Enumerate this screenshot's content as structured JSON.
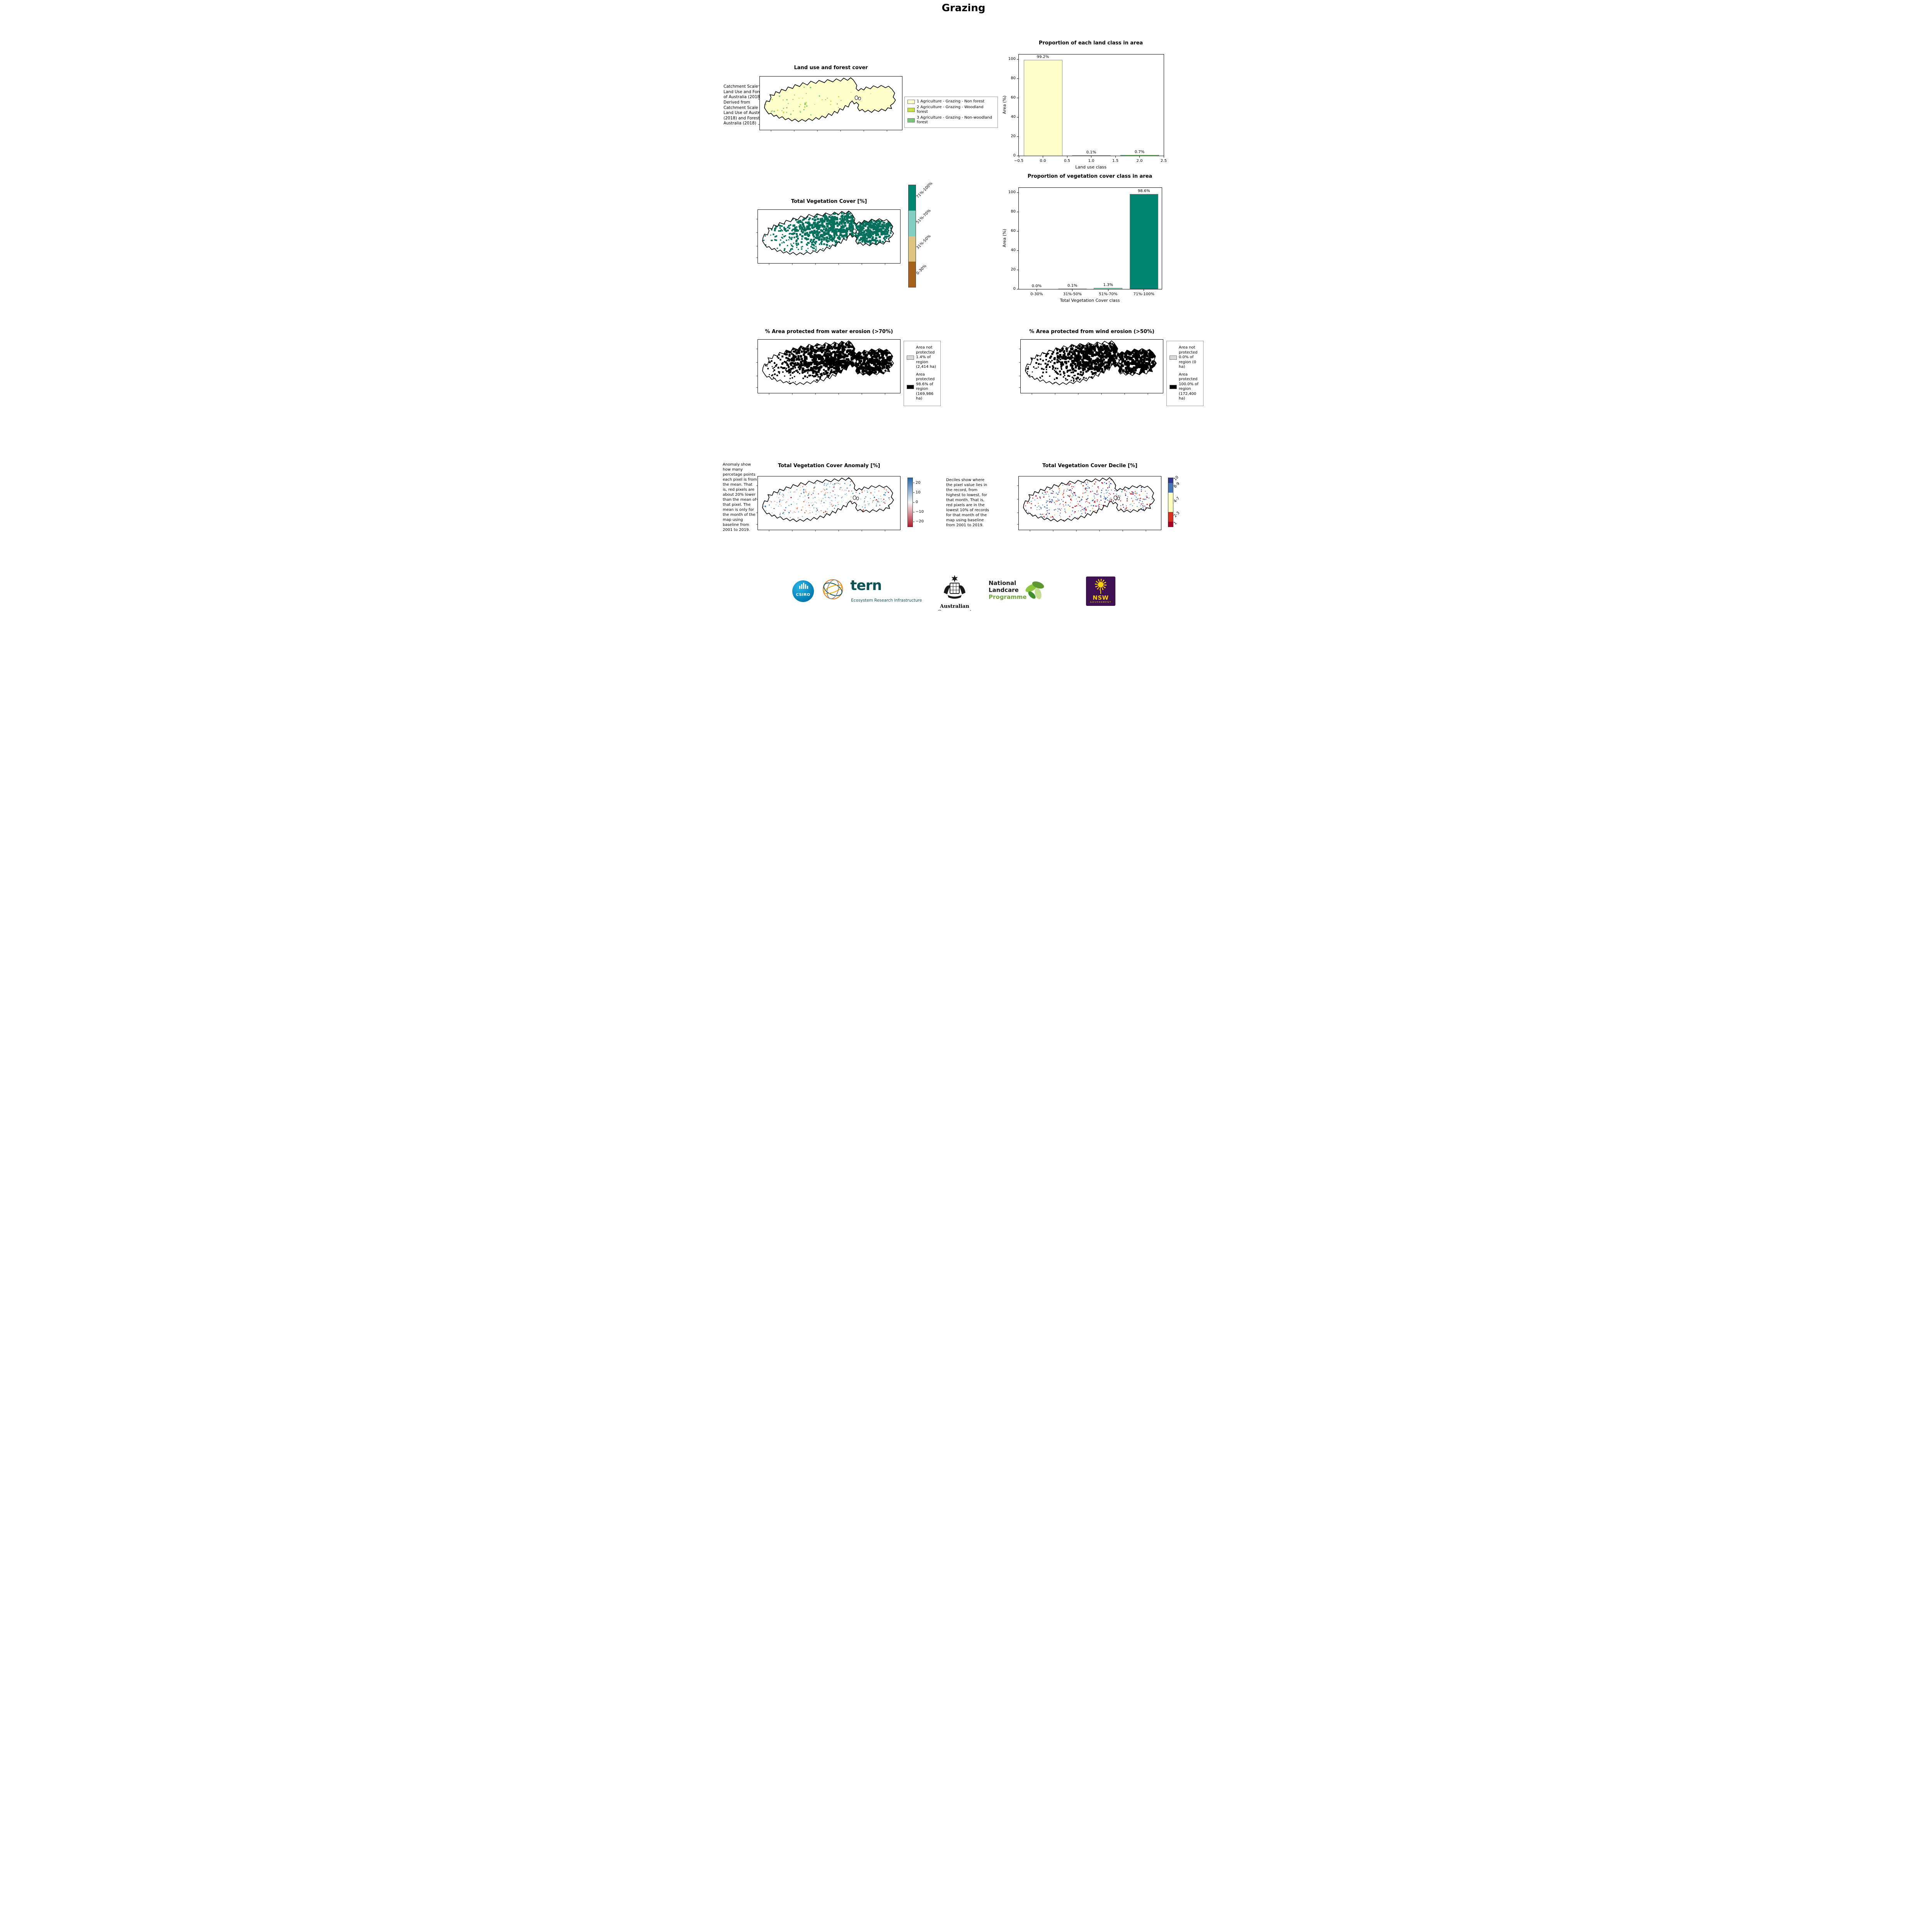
{
  "page": {
    "title": "Grazing"
  },
  "landuse": {
    "title": "Land use and forest cover",
    "note": "Catchment Scale Land Use and Forests of Australia (2018) Derived from Catchment Scale Land Use of Australia (2018) and Forests of Australia (2018)",
    "legend": [
      {
        "label": "1 Agriculture - Grazing - Non forest",
        "color": "#ffffcc"
      },
      {
        "label": "2 Agriculture - Grazing - Woodland forest",
        "color": "#c5e04a"
      },
      {
        "label": "3 Agriculture - Grazing - Non-woodland forest",
        "color": "#78c679"
      }
    ]
  },
  "veg_cover": {
    "title": "Total Vegetation Cover [%]",
    "map_color": "#06705c",
    "colorbar": [
      {
        "label": "71%-100%",
        "color": "#018571"
      },
      {
        "label": "51%-70%",
        "color": "#80cdc1"
      },
      {
        "label": "31%-50%",
        "color": "#dfc27d"
      },
      {
        "label": "0-30%",
        "color": "#a6611a"
      }
    ]
  },
  "water_erosion": {
    "title": "% Area protected from water erosion (>70%)",
    "legend": [
      {
        "label": "Area not protected 1.4% of region (2,414 ha)",
        "color": "#d9d9d9"
      },
      {
        "label": "Area protected 98.6% of region (169,986 ha)",
        "color": "#000000"
      }
    ]
  },
  "wind_erosion": {
    "title": "% Area protected from wind erosion (>50%)",
    "legend": [
      {
        "label": "Area not protected 0.0% of region (0 ha)",
        "color": "#d9d9d9"
      },
      {
        "label": "Area protected 100.0% of region (172,400 ha)",
        "color": "#000000"
      }
    ]
  },
  "anomaly": {
    "title": "Total Vegetation Cover Anomaly [%]",
    "note": "Anomaly show how many percetage points each pixel is from the mean. That is, red pixels are about 20% lower than the mean of that pixel. The mean is only for the month of the map using baseline from 2001 to 2019.",
    "colorbar_ticks": [
      "20",
      "10",
      "0",
      "−10",
      "−20"
    ],
    "colorbar_colors": {
      "top": "#2166ac",
      "mid": "#f7f7f7",
      "bottom": "#b2182b"
    }
  },
  "decile": {
    "title": "Total Vegetation Cover Decile [%]",
    "note": "Deciles show where the pixel value lies in the record, from highest to lowest, for that month. That is, red pixels are in the lowest 10% of records for that month of the map using baseline from 2001 to 2019.",
    "colorbar": [
      {
        "label": "10",
        "color": "#313695",
        "frac": 0.1
      },
      {
        "label": "8-9",
        "color": "#4575b4",
        "frac": 0.2
      },
      {
        "label": "4-7",
        "color": "#ffffbf",
        "frac": 0.4
      },
      {
        "label": "2-3",
        "color": "#d7301f",
        "frac": 0.2
      },
      {
        "label": "1",
        "color": "#a50026",
        "frac": 0.1
      }
    ]
  },
  "chart_data": [
    {
      "type": "bar",
      "title": "Proportion of each land class in area",
      "xlabel": "Land use class",
      "ylabel": "Area (%)",
      "x": [
        0,
        1,
        2
      ],
      "values": [
        99.2,
        0.1,
        0.7
      ],
      "bar_labels": [
        "99.2%",
        "0.1%",
        "0.7%"
      ],
      "bar_colors": [
        "#ffffcc",
        "#c5e04a",
        "#78c679"
      ],
      "bar_width": 0.8,
      "xlim": [
        -0.5,
        2.5
      ],
      "ylim": [
        0,
        105
      ],
      "xticks": [
        "−0.5",
        "0.0",
        "0.5",
        "1.0",
        "1.5",
        "2.0",
        "2.5"
      ],
      "xtick_values": [
        -0.5,
        0,
        0.5,
        1,
        1.5,
        2,
        2.5
      ],
      "yticks": [
        0,
        20,
        40,
        60,
        80,
        100
      ],
      "legend_position": "none",
      "grid": false
    },
    {
      "type": "bar",
      "title": "Proportion of vegetation cover class in area",
      "xlabel": "Total Vegetation Cover class",
      "ylabel": "Area (%)",
      "categories": [
        "0-30%",
        "31%-50%",
        "51%-70%",
        "71%-100%"
      ],
      "values": [
        0.0,
        0.1,
        1.3,
        98.6
      ],
      "bar_labels": [
        "0.0%",
        "0.1%",
        "1.3%",
        "98.6%"
      ],
      "bar_colors": [
        "#a6611a",
        "#dfc27d",
        "#80cdc1",
        "#018571"
      ],
      "bar_width": 0.8,
      "ylim": [
        0,
        105
      ],
      "yticks": [
        0,
        20,
        40,
        60,
        80,
        100
      ],
      "legend_position": "none",
      "grid": false
    }
  ],
  "footer": {
    "csiro": "CSIRO",
    "tern": "tern",
    "tern_sub": "Ecosystem Research Infrastructure",
    "aus_gov": "Australian Government",
    "landcare": [
      "National",
      "Landcare",
      "Programme"
    ],
    "nsw": "NSW",
    "nsw_sub": "GOVERNMENT"
  }
}
